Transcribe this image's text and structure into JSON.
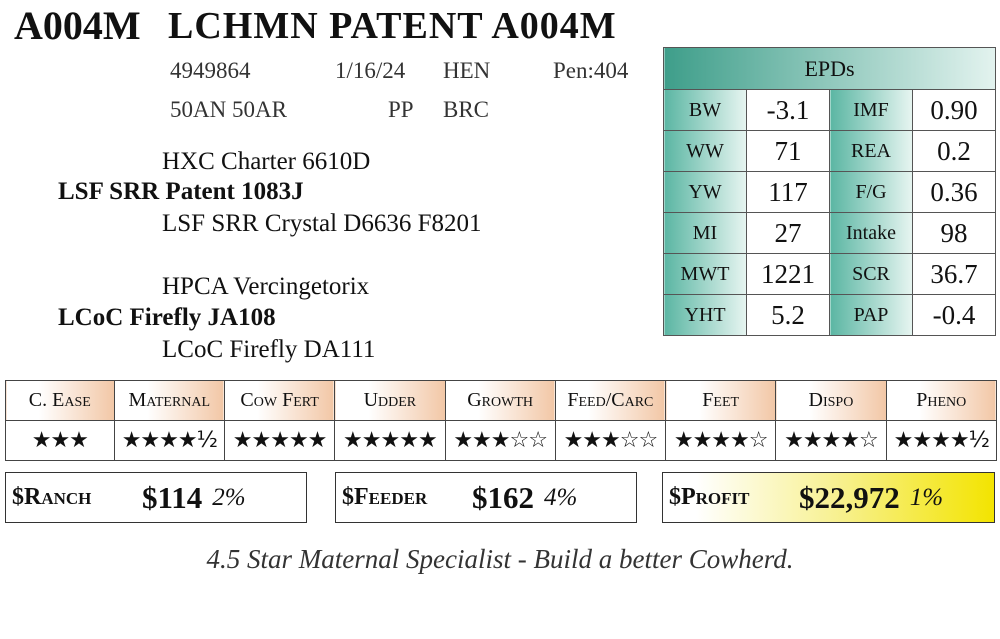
{
  "header": {
    "lot": "A004M",
    "name": "LCHMN PATENT A004M"
  },
  "info": {
    "row1": [
      "4949864",
      "1/16/24",
      "HEN",
      "Pen:404"
    ],
    "row2": [
      "50AN 50AR",
      "PP",
      "BRC"
    ]
  },
  "pedigree": {
    "sire_sire": "HXC Charter 6610D",
    "sire": "LSF SRR Patent 1083J",
    "sire_dam": "LSF SRR Crystal D6636 F8201",
    "dam_sire": "HPCA Vercingetorix",
    "dam": "LCoC Firefly JA108",
    "dam_dam": "LCoC Firefly DA111"
  },
  "epds": {
    "title": "EPDs",
    "rows": [
      [
        "BW",
        "-3.1",
        "IMF",
        "0.90"
      ],
      [
        "WW",
        "71",
        "REA",
        "0.2"
      ],
      [
        "YW",
        "117",
        "F/G",
        "0.36"
      ],
      [
        "MI",
        "27",
        "Intake",
        "98"
      ],
      [
        "MWT",
        "1221",
        "SCR",
        "36.7"
      ],
      [
        "YHT",
        "5.2",
        "PAP",
        "-0.4"
      ]
    ]
  },
  "ratings": {
    "headers": [
      "C. Ease",
      "Maternal",
      "Cow Fert",
      "Udder",
      "Growth",
      "Feed/Carc",
      "Feet",
      "Dispo",
      "Pheno"
    ],
    "stars": [
      "★★★",
      "★★★★½",
      "★★★★★",
      "★★★★★",
      "★★★☆☆",
      "★★★☆☆",
      "★★★★☆",
      "★★★★☆",
      "★★★★½"
    ]
  },
  "indexes": [
    {
      "label": "$Ranch",
      "value": "$114",
      "pct": "2%"
    },
    {
      "label": "$Feeder",
      "value": "$162",
      "pct": "4%"
    },
    {
      "label": "$Profit",
      "value": "$22,972",
      "pct": "1%"
    }
  ],
  "footer": "4.5 Star Maternal Specialist - Build a better Cowherd."
}
